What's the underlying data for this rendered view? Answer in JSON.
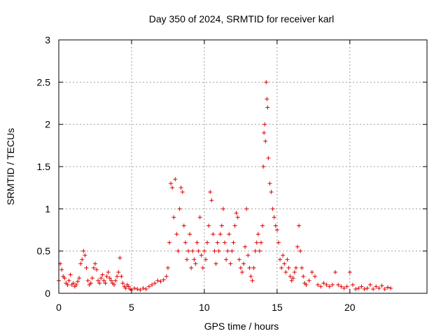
{
  "chart_data": {
    "type": "scatter",
    "title": "Day 350 of 2024, SRMTID for receiver karl",
    "xlabel": "GPS time / hours",
    "ylabel": "SRMTID / TECUs",
    "xlim": [
      0,
      25.3
    ],
    "ylim": [
      0,
      3
    ],
    "xticks": [
      0,
      5,
      10,
      15,
      20
    ],
    "yticks": [
      0,
      0.5,
      1,
      1.5,
      2,
      2.5,
      3
    ],
    "ytick_labels": [
      "0",
      "0.5",
      "1",
      "1.5",
      "2",
      "2.5",
      "3"
    ],
    "grid": true,
    "marker": "+",
    "color": "#e00000",
    "series": [
      {
        "name": "SRMTID",
        "x": [
          0.0,
          0.1,
          0.2,
          0.3,
          0.4,
          0.5,
          0.6,
          0.7,
          0.8,
          0.9,
          1.0,
          1.1,
          1.2,
          1.3,
          1.4,
          1.5,
          1.6,
          1.7,
          1.8,
          1.9,
          2.0,
          2.1,
          2.2,
          2.3,
          2.4,
          2.5,
          2.6,
          2.7,
          2.8,
          2.9,
          3.0,
          3.1,
          3.2,
          3.3,
          3.4,
          3.5,
          3.6,
          3.7,
          3.8,
          3.9,
          4.0,
          4.1,
          4.2,
          4.3,
          4.4,
          4.5,
          4.6,
          4.7,
          4.8,
          4.9,
          5.0,
          5.2,
          5.4,
          5.6,
          5.8,
          6.0,
          6.2,
          6.4,
          6.6,
          6.8,
          7.0,
          7.2,
          7.4,
          7.5,
          7.6,
          7.7,
          7.8,
          7.9,
          8.0,
          8.1,
          8.2,
          8.3,
          8.4,
          8.5,
          8.6,
          8.7,
          8.8,
          8.9,
          9.0,
          9.1,
          9.2,
          9.3,
          9.4,
          9.5,
          9.6,
          9.7,
          9.8,
          9.9,
          10.0,
          10.1,
          10.2,
          10.3,
          10.4,
          10.5,
          10.6,
          10.7,
          10.8,
          10.9,
          11.0,
          11.1,
          11.2,
          11.3,
          11.4,
          11.5,
          11.6,
          11.7,
          11.8,
          11.9,
          12.0,
          12.1,
          12.2,
          12.3,
          12.4,
          12.5,
          12.6,
          12.7,
          12.8,
          12.9,
          13.0,
          13.1,
          13.2,
          13.3,
          13.4,
          13.5,
          13.6,
          13.7,
          13.8,
          13.9,
          14.0,
          14.05,
          14.1,
          14.15,
          14.2,
          14.25,
          14.3,
          14.35,
          14.4,
          14.5,
          14.6,
          14.7,
          14.8,
          14.9,
          15.0,
          15.1,
          15.2,
          15.3,
          15.4,
          15.5,
          15.6,
          15.7,
          15.8,
          15.9,
          16.0,
          16.1,
          16.2,
          16.3,
          16.4,
          16.5,
          16.6,
          16.7,
          16.8,
          16.9,
          17.0,
          17.2,
          17.4,
          17.6,
          17.8,
          18.0,
          18.2,
          18.4,
          18.6,
          18.8,
          19.0,
          19.2,
          19.4,
          19.6,
          19.8,
          20.0,
          20.2,
          20.4,
          20.6,
          20.8,
          21.0,
          21.2,
          21.4,
          21.6,
          21.8,
          22.0,
          22.2,
          22.4,
          22.6,
          22.8
        ],
        "y": [
          0.15,
          0.35,
          0.28,
          0.2,
          0.18,
          0.12,
          0.1,
          0.15,
          0.22,
          0.1,
          0.12,
          0.08,
          0.1,
          0.14,
          0.18,
          0.35,
          0.4,
          0.5,
          0.45,
          0.3,
          0.15,
          0.1,
          0.12,
          0.18,
          0.3,
          0.35,
          0.28,
          0.15,
          0.12,
          0.18,
          0.22,
          0.15,
          0.12,
          0.2,
          0.25,
          0.18,
          0.15,
          0.12,
          0.1,
          0.15,
          0.2,
          0.25,
          0.42,
          0.2,
          0.12,
          0.08,
          0.06,
          0.1,
          0.08,
          0.05,
          0.04,
          0.06,
          0.05,
          0.04,
          0.06,
          0.05,
          0.08,
          0.1,
          0.12,
          0.15,
          0.14,
          0.16,
          0.2,
          0.3,
          0.6,
          1.3,
          1.25,
          0.9,
          1.35,
          0.7,
          0.5,
          1.0,
          1.25,
          1.2,
          0.8,
          0.6,
          0.4,
          0.5,
          0.7,
          0.3,
          0.5,
          0.4,
          0.35,
          0.6,
          0.5,
          0.9,
          0.45,
          0.3,
          0.5,
          0.4,
          0.6,
          0.8,
          1.2,
          1.1,
          0.7,
          0.5,
          0.35,
          0.6,
          0.5,
          0.7,
          0.8,
          1.0,
          0.6,
          0.4,
          0.5,
          0.7,
          0.35,
          0.5,
          0.6,
          0.8,
          0.95,
          0.9,
          0.4,
          0.3,
          0.25,
          0.35,
          0.55,
          1.0,
          0.45,
          0.3,
          0.2,
          0.15,
          0.3,
          0.5,
          0.6,
          0.7,
          0.5,
          0.6,
          0.8,
          1.5,
          1.9,
          2.0,
          1.8,
          2.5,
          2.3,
          2.2,
          1.6,
          1.3,
          1.2,
          1.0,
          0.9,
          0.8,
          0.75,
          0.6,
          0.4,
          0.3,
          0.45,
          0.35,
          0.25,
          0.4,
          0.3,
          0.2,
          0.15,
          0.18,
          0.25,
          0.3,
          0.55,
          0.8,
          0.5,
          0.3,
          0.2,
          0.12,
          0.1,
          0.15,
          0.25,
          0.2,
          0.1,
          0.08,
          0.12,
          0.1,
          0.08,
          0.1,
          0.25,
          0.1,
          0.08,
          0.06,
          0.08,
          0.25,
          0.1,
          0.05,
          0.06,
          0.08,
          0.05,
          0.06,
          0.1,
          0.05,
          0.08,
          0.06,
          0.09,
          0.05,
          0.07,
          0.06
        ]
      }
    ]
  }
}
